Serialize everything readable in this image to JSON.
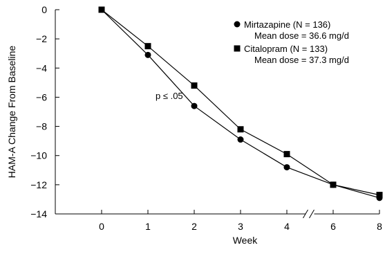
{
  "chart_data": {
    "type": "line",
    "xlabel": "Week",
    "ylabel": "HAM-A Change From Baseline",
    "x_ticks": [
      "0",
      "1",
      "2",
      "3",
      "4",
      "6",
      "8"
    ],
    "x_positions": [
      0,
      1,
      2,
      3,
      4,
      5,
      6
    ],
    "y_ticks": [
      "0",
      "−2",
      "−4",
      "−6",
      "−8",
      "−10",
      "−12",
      "−14"
    ],
    "y_tick_values": [
      0,
      -2,
      -4,
      -6,
      -8,
      -10,
      -12,
      -14
    ],
    "ylim": [
      -14,
      0
    ],
    "axis_break_between": [
      "4",
      "6"
    ],
    "grid": false,
    "legend_position": "top-right",
    "series": [
      {
        "name": "Mirtazapine (N = 136)",
        "note": "Mean dose = 36.6 mg/d",
        "marker": "circle",
        "weeks": [
          0,
          1,
          2,
          3,
          4,
          6,
          8
        ],
        "values": [
          0,
          -3.1,
          -6.6,
          -8.9,
          -10.8,
          -12.0,
          -12.9
        ]
      },
      {
        "name": "Citalopram (N = 133)",
        "note": "Mean dose = 37.3 mg/d",
        "marker": "square",
        "weeks": [
          0,
          1,
          2,
          3,
          4,
          6,
          8
        ],
        "values": [
          0,
          -2.5,
          -5.2,
          -8.2,
          -9.9,
          -12.0,
          -12.7
        ]
      }
    ],
    "annotations": [
      {
        "text": "p ≤ .05",
        "week": 2,
        "value": -6.6
      }
    ]
  }
}
